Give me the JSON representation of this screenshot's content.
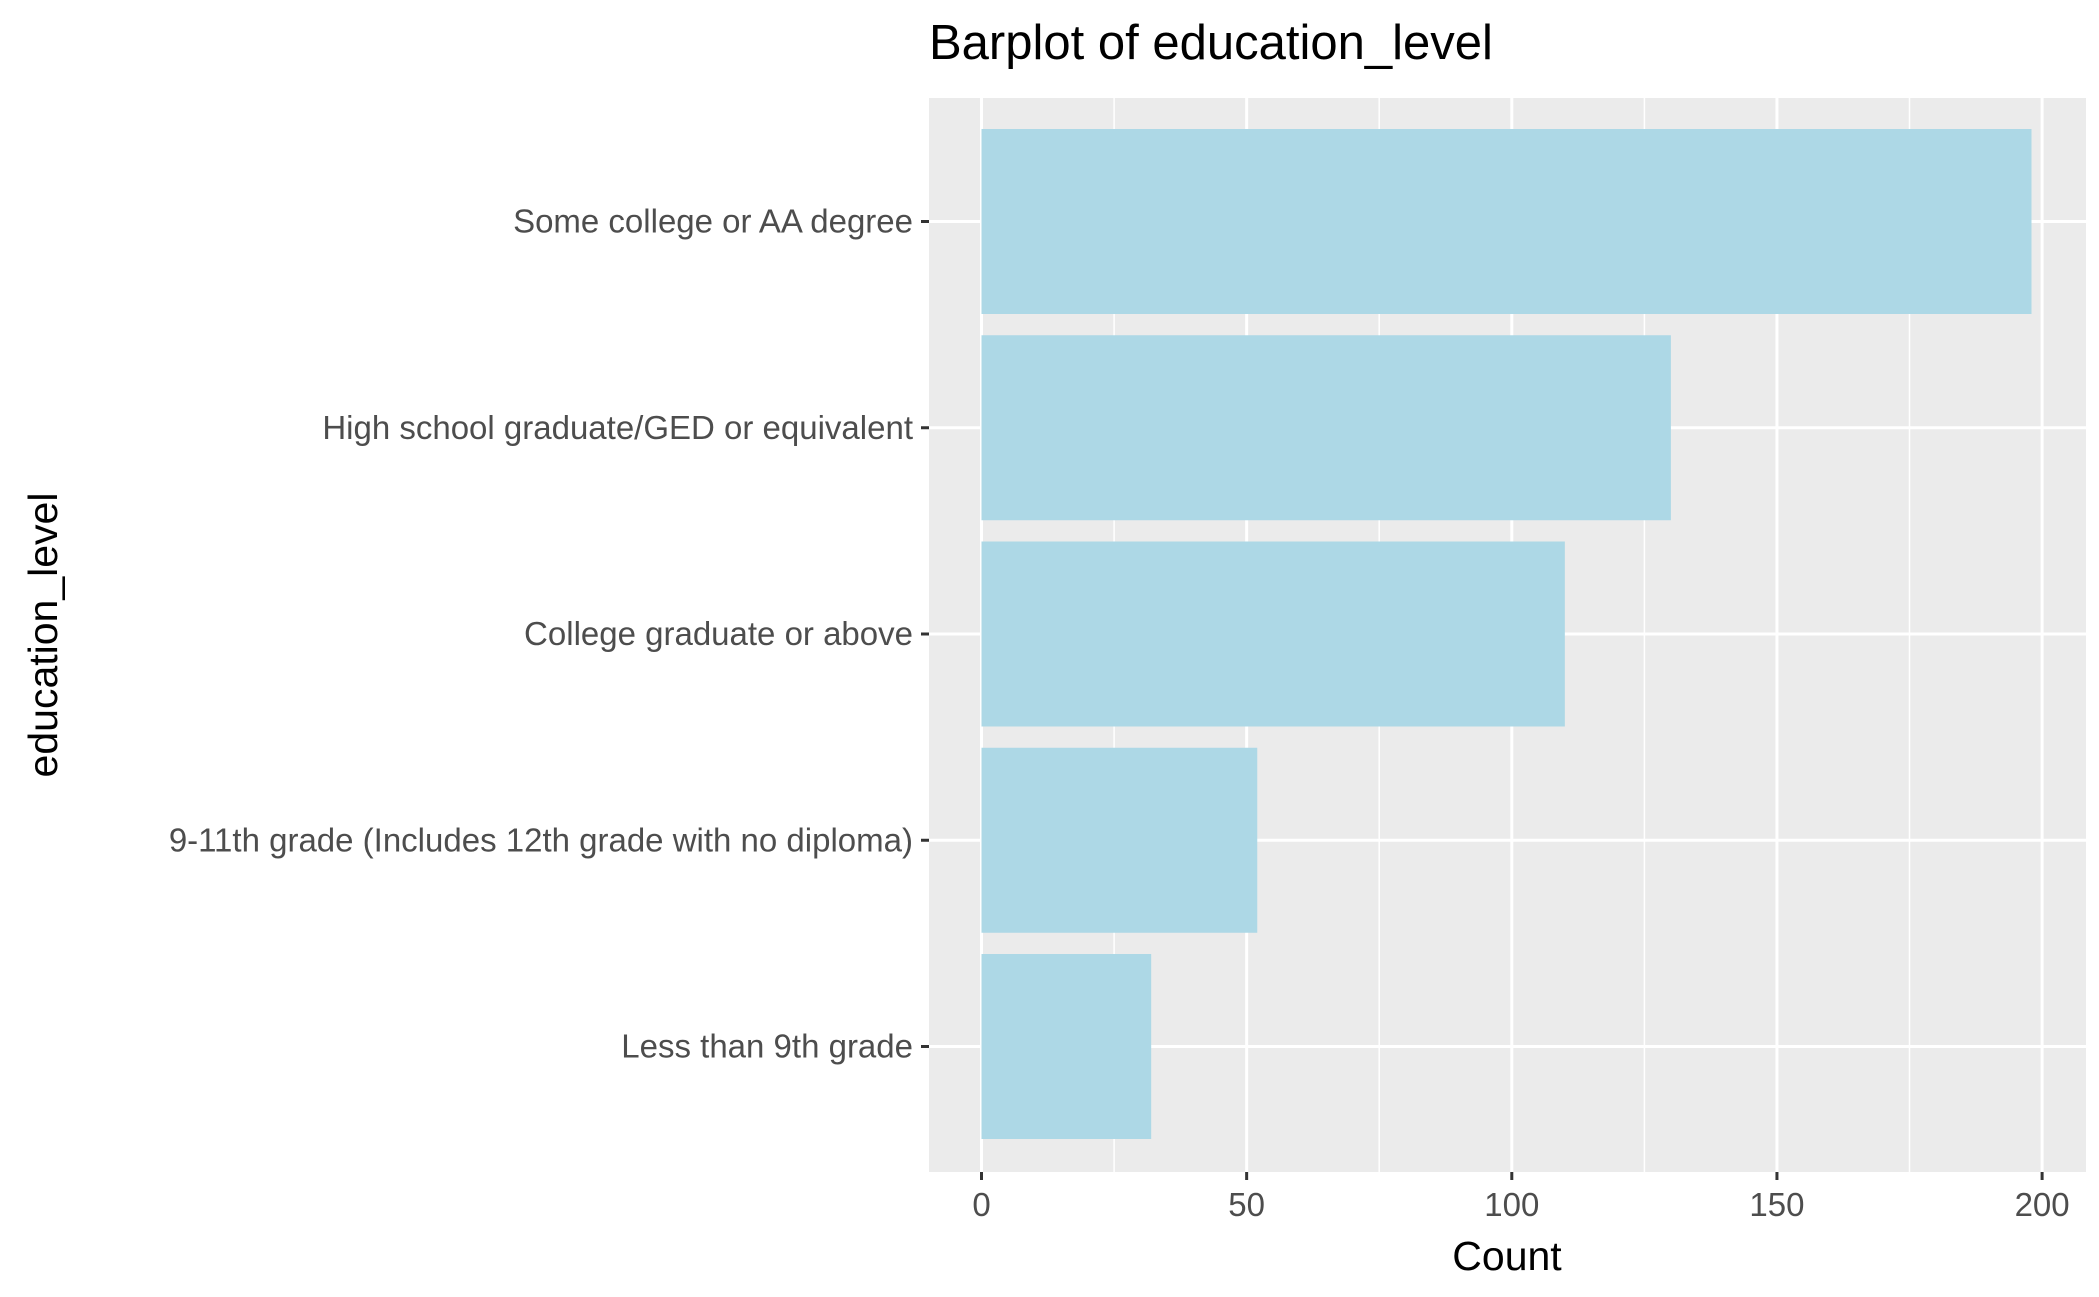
{
  "chart_data": {
    "type": "bar",
    "orientation": "horizontal",
    "title": "Barplot of education_level",
    "xlabel": "Count",
    "ylabel": "education_level",
    "categories": [
      "Some college or AA degree",
      "High school graduate/GED or equivalent",
      "College graduate or above",
      "9-11th grade (Includes 12th grade with no diploma)",
      "Less than 9th grade"
    ],
    "values": [
      198,
      130,
      110,
      52,
      32
    ],
    "x_ticks": [
      0,
      50,
      100,
      150,
      200
    ],
    "x_tick_labels": [
      "0",
      "50",
      "100",
      "150",
      "200"
    ],
    "xlim": [
      -10,
      208.5
    ],
    "grid": true,
    "legend": "none",
    "colors": {
      "bar_fill": "#ADD8E6",
      "panel_background": "#EBEBEB",
      "grid_line": "#FFFFFF",
      "tick_text": "#4D4D4D",
      "tick_mark": "#333333",
      "title_text": "#000000"
    }
  }
}
